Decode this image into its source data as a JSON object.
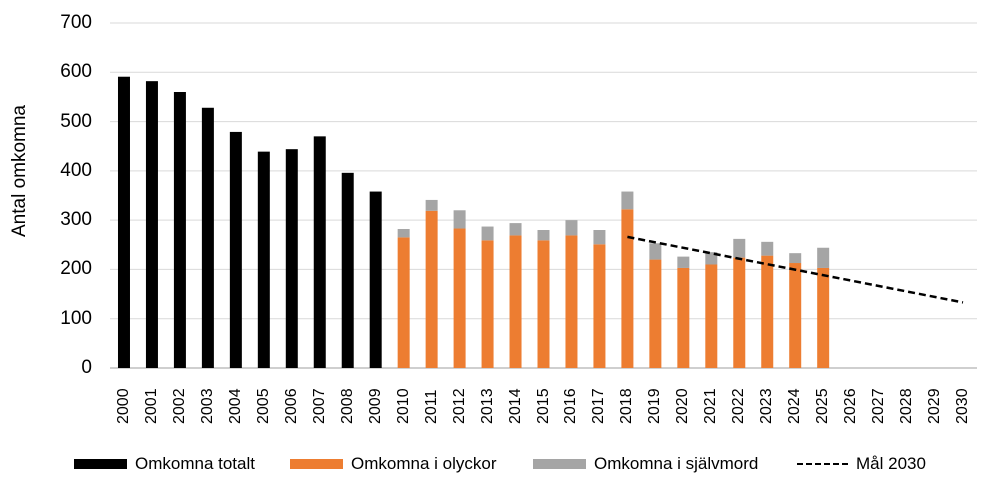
{
  "chart_data": {
    "type": "bar",
    "title": "",
    "xlabel": "",
    "ylabel": "Antal omkomna",
    "ylim": [
      0,
      700
    ],
    "yticks": [
      0,
      100,
      200,
      300,
      400,
      500,
      600,
      700
    ],
    "grid": true,
    "legend_position": "bottom",
    "categories": [
      "2000",
      "2001",
      "2002",
      "2003",
      "2004",
      "2005",
      "2006",
      "2007",
      "2008",
      "2009",
      "2010",
      "2011",
      "2012",
      "2013",
      "2014",
      "2015",
      "2016",
      "2017",
      "2018",
      "2019",
      "2020",
      "2021",
      "2022",
      "2023",
      "2024",
      "2025",
      "2026",
      "2027",
      "2028",
      "2029",
      "2030"
    ],
    "series": [
      {
        "name": "Omkomna totalt",
        "type": "bar",
        "color": "#000000",
        "values": [
          591,
          582,
          560,
          528,
          479,
          439,
          444,
          470,
          396,
          358,
          null,
          null,
          null,
          null,
          null,
          null,
          null,
          null,
          null,
          null,
          null,
          null,
          null,
          null,
          null,
          null,
          null,
          null,
          null,
          null,
          null
        ]
      },
      {
        "name": "Omkomna i olyckor",
        "type": "stacked-bar",
        "color": "#ED7D31",
        "values": [
          null,
          null,
          null,
          null,
          null,
          null,
          null,
          null,
          null,
          null,
          265,
          319,
          283,
          259,
          269,
          259,
          269,
          251,
          322,
          220,
          203,
          210,
          224,
          228,
          213,
          203,
          null,
          null,
          null,
          null,
          null
        ]
      },
      {
        "name": "Omkomna i självmord",
        "type": "stacked-bar",
        "color": "#A5A5A5",
        "values": [
          null,
          null,
          null,
          null,
          null,
          null,
          null,
          null,
          null,
          null,
          17,
          22,
          37,
          28,
          25,
          21,
          31,
          29,
          36,
          33,
          23,
          25,
          38,
          28,
          20,
          41,
          null,
          null,
          null,
          null,
          null
        ]
      },
      {
        "name": "Mål 2030",
        "type": "line",
        "style": "dashed",
        "color": "#000000",
        "x": [
          "2018",
          "2030"
        ],
        "values": [
          266,
          133
        ]
      }
    ]
  },
  "legend": {
    "items": [
      {
        "label": "Omkomna totalt"
      },
      {
        "label": "Omkomna i olyckor"
      },
      {
        "label": "Omkomna i självmord"
      },
      {
        "label": "Mål 2030"
      }
    ]
  },
  "axis": {
    "ylabel": "Antal omkomna"
  }
}
